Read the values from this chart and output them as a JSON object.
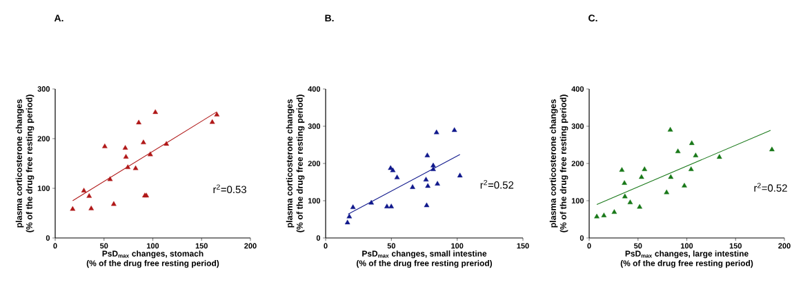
{
  "chart_data": [
    {
      "type": "scatter",
      "title": "A.",
      "xlabel": "PsD$_{max}$ changes, stomach\n(% of the drug free resting period)",
      "ylabel": "plasma corticosterone changes\n(% of the drug free resting period)",
      "annotations": [
        "r$^{2}$=0.53"
      ],
      "xlim": [
        0,
        200
      ],
      "ylim": [
        0,
        300
      ],
      "xticks": [
        0,
        50,
        100,
        150,
        200
      ],
      "yticks": [
        0,
        100,
        200,
        300
      ],
      "series": [
        {
          "type": "scatter",
          "marker": "triangle",
          "color": "#b01818",
          "x": [
            17.9,
            29.4,
            34.8,
            36.9,
            50.8,
            56.2,
            60,
            71.8,
            72.5,
            74.4,
            82.4,
            85.6,
            90.4,
            91.8,
            93.4,
            97.4,
            102.6,
            113.9,
            160.9,
            165.6
          ],
          "values": [
            58,
            95,
            84,
            59,
            184,
            118,
            68,
            181,
            163,
            142,
            140,
            232,
            192,
            85,
            85,
            168,
            253,
            189,
            233,
            248
          ]
        },
        {
          "type": "line",
          "marker": "none",
          "color": "#b01818",
          "x": [
            17.9,
            165.6
          ],
          "values": [
            75,
            254
          ]
        }
      ]
    },
    {
      "type": "scatter",
      "title": "B.",
      "xlabel": "PsD$_{max}$ changes, small intestine\n(% of the drug free resting preriod)",
      "ylabel": "plasma corticosterone changes\n(% of the drug free resting period)",
      "annotations": [
        "r$^{2}$=0.52"
      ],
      "xlim": [
        0,
        150
      ],
      "ylim": [
        0,
        400
      ],
      "xticks": [
        0,
        50,
        100,
        150
      ],
      "yticks": [
        0,
        100,
        200,
        300,
        400
      ],
      "series": [
        {
          "type": "scatter",
          "marker": "triangle",
          "color": "#10188c",
          "x": [
            16.6,
            18,
            20.8,
            34.7,
            46.6,
            49.9,
            49.4,
            51.1,
            54.3,
            66.1,
            76.3,
            77.7,
            76.8,
            77.3,
            81.8,
            81.8,
            84.3,
            85,
            97.9,
            102.1
          ],
          "values": [
            41,
            57,
            82,
            94,
            84,
            84,
            187,
            181,
            162,
            136,
            156,
            139,
            87,
            221,
            194,
            184,
            283,
            145,
            289,
            167
          ]
        },
        {
          "type": "line",
          "marker": "none",
          "color": "#10188c",
          "x": [
            17.1,
            102.1
          ],
          "values": [
            64,
            224
          ]
        }
      ]
    },
    {
      "type": "scatter",
      "title": "C.",
      "xlabel": "PsD$_{max}$ changes, large intestine\n(% of the drug free resting period)",
      "ylabel": "plasma corticosterone changes\n(% of the drug free resting period)",
      "annotations": [
        "r$^{2}$=0.52"
      ],
      "xlim": [
        0,
        200
      ],
      "ylim": [
        0,
        400
      ],
      "xticks": [
        0,
        50,
        100,
        150,
        200
      ],
      "yticks": [
        0,
        100,
        200,
        300,
        400
      ],
      "series": [
        {
          "type": "scatter",
          "marker": "triangle",
          "color": "#187818",
          "x": [
            7.8,
            15.1,
            25.7,
            33.5,
            36.1,
            36.6,
            42,
            51.7,
            53.6,
            56.7,
            79.3,
            83.1,
            83.6,
            90.9,
            97.5,
            104.4,
            105.1,
            109.1,
            133.4,
            187.2
          ],
          "values": [
            57,
            60,
            69,
            182,
            147,
            111,
            95,
            83,
            163,
            184,
            122,
            290,
            163,
            232,
            140,
            184,
            254,
            221,
            217,
            237
          ]
        },
        {
          "type": "line",
          "marker": "none",
          "color": "#187818",
          "x": [
            7.8,
            185.8
          ],
          "values": [
            90,
            289
          ]
        }
      ]
    }
  ]
}
